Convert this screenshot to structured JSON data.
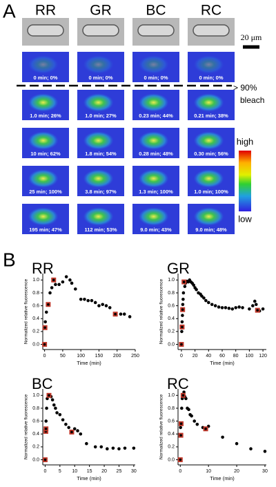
{
  "panel_a": {
    "label": "A",
    "columns": [
      "RR",
      "GR",
      "BC",
      "RC"
    ],
    "scale_bar": "20 μm",
    "bleach_label": [
      "> 90%",
      "bleach"
    ],
    "colorbar": {
      "high": "high",
      "low": "low"
    },
    "rows": [
      [
        "0 min; 0%",
        "0 min; 0%",
        "0 min; 0%",
        "0 min; 0%"
      ],
      [
        "1.0 min; 26%",
        "1.0 min; 27%",
        "0.23 min; 44%",
        "0.21 min; 38%"
      ],
      [
        "10 min; 62%",
        "1.8 min; 54%",
        "0.28 min; 48%",
        "0.30 min; 56%"
      ],
      [
        "25 min; 100%",
        "3.8 min; 97%",
        "1.3 min; 100%",
        "1.0 min; 100%"
      ],
      [
        "195 min; 47%",
        "112 min; 53%",
        "9.0 min; 43%",
        "9.0 min; 48%"
      ]
    ]
  },
  "panel_b": {
    "label": "B"
  },
  "chart_data": [
    {
      "type": "scatter",
      "title": "RR",
      "x_label": "Time (min)",
      "y_label": "Normalized relative fluorescence",
      "xlim": [
        -5,
        250
      ],
      "xticks": [
        0,
        50,
        100,
        150,
        200,
        250
      ],
      "ylim": [
        -0.08,
        1.1
      ],
      "yticks": [
        {
          "value": 0,
          "label": "0.0"
        },
        {
          "value": 0.2,
          "label": "0.2"
        },
        {
          "value": 0.4,
          "label": "0.4"
        },
        {
          "value": 0.6,
          "label": "0.6"
        },
        {
          "value": 0.8,
          "label": "0.8"
        },
        {
          "value": 1.0,
          "label": "1.0"
        }
      ],
      "series": [
        {
          "color": "#000000",
          "marker": "circle",
          "x": [
            0,
            2,
            5,
            10,
            15,
            20,
            30,
            40,
            50,
            60,
            70,
            75,
            85,
            100,
            110,
            120,
            130,
            140,
            150,
            160,
            170,
            180,
            210,
            220,
            235
          ],
          "values": [
            0.25,
            0.35,
            0.5,
            0.62,
            0.8,
            0.88,
            0.93,
            0.93,
            0.97,
            1.05,
            1.0,
            0.95,
            0.86,
            0.7,
            0.7,
            0.68,
            0.68,
            0.65,
            0.6,
            0.62,
            0.6,
            0.57,
            0.47,
            0.47,
            0.43
          ]
        },
        {
          "color": "#c0392b",
          "marker": "square",
          "x": [
            0,
            1,
            10,
            25,
            195
          ],
          "values": [
            0,
            0.26,
            0.62,
            1.0,
            0.47
          ]
        }
      ]
    },
    {
      "type": "scatter",
      "title": "GR",
      "x_label": "Time (min)",
      "y_label": "Normalized relative fluorescence",
      "xlim": [
        -5,
        125
      ],
      "xticks": [
        0,
        20,
        40,
        60,
        80,
        100,
        120
      ],
      "ylim": [
        -0.08,
        1.1
      ],
      "yticks": [
        {
          "value": 0,
          "label": "0.0"
        },
        {
          "value": 0.2,
          "label": "0.2"
        },
        {
          "value": 0.4,
          "label": "0.4"
        },
        {
          "value": 0.6,
          "label": "0.6"
        },
        {
          "value": 0.8,
          "label": "0.8"
        },
        {
          "value": 1.0,
          "label": "1.0"
        }
      ],
      "series": [
        {
          "color": "#000000",
          "marker": "circle",
          "x": [
            0.5,
            1,
            1.5,
            2,
            2.5,
            3,
            4,
            5,
            6,
            8,
            10,
            12,
            14,
            16,
            18,
            20,
            22,
            25,
            28,
            30,
            33,
            36,
            40,
            45,
            50,
            55,
            60,
            65,
            70,
            75,
            80,
            85,
            90,
            100,
            105,
            108,
            110,
            115,
            120
          ],
          "values": [
            0.2,
            0.35,
            0.45,
            0.62,
            0.7,
            0.8,
            0.97,
            0.9,
            0.95,
            0.98,
            0.97,
            1.0,
            0.97,
            0.95,
            0.92,
            0.88,
            0.85,
            0.8,
            0.78,
            0.75,
            0.72,
            0.68,
            0.65,
            0.62,
            0.6,
            0.58,
            0.57,
            0.57,
            0.56,
            0.55,
            0.57,
            0.58,
            0.57,
            0.55,
            0.6,
            0.67,
            0.62,
            0.52,
            0.55
          ]
        },
        {
          "color": "#c0392b",
          "marker": "square",
          "x": [
            0,
            1,
            1.8,
            3.8,
            112
          ],
          "values": [
            0,
            0.27,
            0.54,
            0.97,
            0.53
          ]
        }
      ]
    },
    {
      "type": "scatter",
      "title": "BC",
      "x_label": "Time (min)",
      "y_label": "Normalized relative fluorescence",
      "xlim": [
        -0.8,
        30.5
      ],
      "xticks": [
        0,
        5,
        10,
        15,
        20,
        25,
        30
      ],
      "ylim": [
        -0.08,
        1.1
      ],
      "yticks": [
        {
          "value": 0,
          "label": "0.0"
        },
        {
          "value": 0.2,
          "label": "0.2"
        },
        {
          "value": 0.4,
          "label": "0.4"
        },
        {
          "value": 0.6,
          "label": "0.6"
        },
        {
          "value": 0.8,
          "label": "0.8"
        },
        {
          "value": 1.0,
          "label": "1.0"
        }
      ],
      "series": [
        {
          "color": "#000000",
          "marker": "circle",
          "x": [
            0.1,
            0.3,
            0.5,
            0.7,
            1.6,
            2,
            2.5,
            3,
            3.5,
            4,
            5,
            6,
            7,
            8,
            10,
            11,
            12,
            14,
            17,
            19,
            21,
            23,
            25,
            27,
            30
          ],
          "values": [
            0.45,
            0.6,
            0.8,
            0.95,
            1.0,
            0.98,
            0.93,
            0.85,
            0.8,
            0.73,
            0.7,
            0.62,
            0.55,
            0.5,
            0.48,
            0.45,
            0.4,
            0.25,
            0.2,
            0.2,
            0.17,
            0.18,
            0.17,
            0.18,
            0.18
          ]
        },
        {
          "color": "#c0392b",
          "marker": "square",
          "x": [
            0,
            0.23,
            0.28,
            1.3,
            9.0
          ],
          "values": [
            0,
            0.44,
            0.48,
            1.0,
            0.43
          ]
        }
      ]
    },
    {
      "type": "scatter",
      "title": "RC",
      "x_label": "Time (min)",
      "y_label": "Normalized relative fluorescence",
      "xlim": [
        -0.8,
        30.5
      ],
      "xticks": [
        0,
        10,
        20,
        30
      ],
      "ylim": [
        -0.08,
        1.1
      ],
      "yticks": [
        {
          "value": 0,
          "label": "0.0"
        },
        {
          "value": 0.2,
          "label": "0.2"
        },
        {
          "value": 0.4,
          "label": "0.4"
        },
        {
          "value": 0.6,
          "label": "0.6"
        },
        {
          "value": 0.8,
          "label": "0.8"
        },
        {
          "value": 1.0,
          "label": "1.0"
        }
      ],
      "series": [
        {
          "color": "#000000",
          "marker": "circle",
          "x": [
            0.1,
            0.5,
            0.7,
            1.3,
            1.6,
            2,
            2.5,
            3,
            3.5,
            4,
            5,
            6,
            8,
            10,
            15,
            20,
            25,
            30
          ],
          "values": [
            0.5,
            0.8,
            0.95,
            1.05,
            0.98,
            0.95,
            0.8,
            0.78,
            0.7,
            0.68,
            0.6,
            0.55,
            0.5,
            0.52,
            0.35,
            0.25,
            0.17,
            0.13
          ]
        },
        {
          "color": "#c0392b",
          "marker": "square",
          "x": [
            0,
            0.21,
            0.3,
            1.0,
            9.0
          ],
          "values": [
            0,
            0.38,
            0.56,
            1.0,
            0.48
          ]
        }
      ]
    }
  ]
}
